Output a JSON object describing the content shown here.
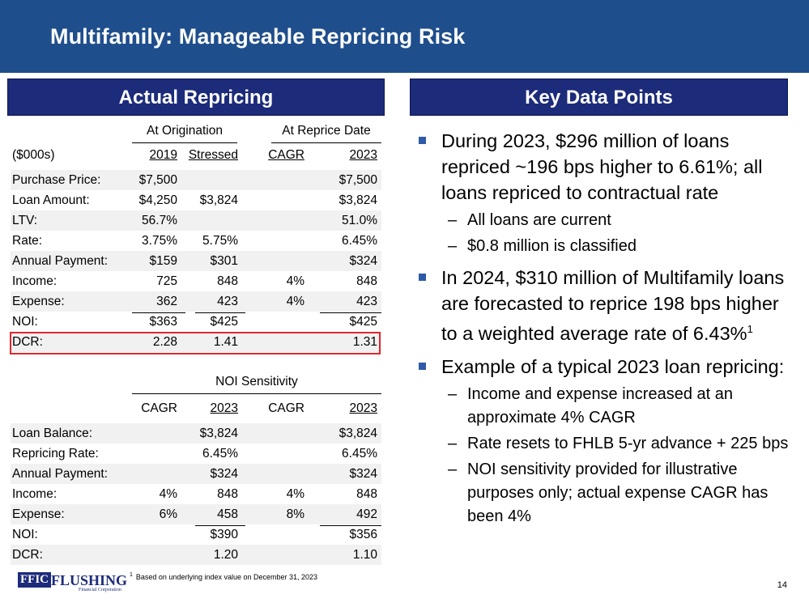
{
  "title": "Multifamily: Manageable Repricing Risk",
  "left_header": "Actual Repricing",
  "right_header": "Key Data Points",
  "actual": {
    "group1": "At Origination",
    "group2": "At Reprice Date",
    "units": "($000s)",
    "col1": "2019",
    "col2": "Stressed",
    "col3": "CAGR",
    "col4": "2023",
    "rows": [
      {
        "label": "Purchase Price:",
        "v1": "$7,500",
        "v2": "",
        "v3": "",
        "v4": "$7,500"
      },
      {
        "label": "Loan Amount:",
        "v1": "$4,250",
        "v2": "$3,824",
        "v3": "",
        "v4": "$3,824"
      },
      {
        "label": "LTV:",
        "v1": "56.7%",
        "v2": "",
        "v3": "",
        "v4": "51.0%"
      },
      {
        "label": "Rate:",
        "v1": "3.75%",
        "v2": "5.75%",
        "v3": "",
        "v4": "6.45%"
      },
      {
        "label": "Annual Payment:",
        "v1": "$159",
        "v2": "$301",
        "v3": "",
        "v4": "$324"
      },
      {
        "label": "Income:",
        "v1": "725",
        "v2": "848",
        "v3": "4%",
        "v4": "848"
      },
      {
        "label": "Expense:",
        "v1": "362",
        "v2": "423",
        "v3": "4%",
        "v4": "423"
      },
      {
        "label": "NOI:",
        "v1": "$363",
        "v2": "$425",
        "v3": "",
        "v4": "$425"
      },
      {
        "label": "DCR:",
        "v1": "2.28",
        "v2": "1.41",
        "v3": "",
        "v4": "1.31"
      }
    ]
  },
  "sensitivity": {
    "group": "NOI Sensitivity",
    "col1": "CAGR",
    "col2": "2023",
    "col3": "CAGR",
    "col4": "2023",
    "rows": [
      {
        "label": "Loan Balance:",
        "v1": "",
        "v2": "$3,824",
        "v3": "",
        "v4": "$3,824"
      },
      {
        "label": "Repricing Rate:",
        "v1": "",
        "v2": "6.45%",
        "v3": "",
        "v4": "6.45%"
      },
      {
        "label": "Annual Payment:",
        "v1": "",
        "v2": "$324",
        "v3": "",
        "v4": "$324"
      },
      {
        "label": "Income:",
        "v1": "4%",
        "v2": "848",
        "v3": "4%",
        "v4": "848"
      },
      {
        "label": "Expense:",
        "v1": "6%",
        "v2": "458",
        "v3": "8%",
        "v4": "492"
      },
      {
        "label": "NOI:",
        "v1": "",
        "v2": "$390",
        "v3": "",
        "v4": "$356"
      },
      {
        "label": "DCR:",
        "v1": "",
        "v2": "1.20",
        "v3": "",
        "v4": "1.10"
      }
    ]
  },
  "bullets": [
    {
      "text": "During 2023, $296 million of loans repriced ~196 bps higher to 6.61%; all loans repriced to contractual rate",
      "subs": [
        "All loans are current",
        "$0.8 million is classified"
      ]
    },
    {
      "text": "In 2024, $310 million of Multifamily loans are forecasted to reprice 198 bps higher to a weighted average rate of 6.43%",
      "sup": "1",
      "subs": []
    },
    {
      "text": "Example of a typical 2023 loan repricing:",
      "subs": [
        "Income and expense increased at an approximate 4% CAGR",
        "Rate resets to FHLB 5-yr advance + 225 bps",
        "NOI sensitivity provided for illustrative purposes only; actual expense CAGR has been 4%"
      ]
    }
  ],
  "footer": {
    "logo_box": "FFIC",
    "logo_word": "FLUSHING",
    "logo_sub": "Financial Corporation",
    "footnote_mark": "1",
    "footnote": "Based on underlying index value on December 31, 2023",
    "page": "14"
  },
  "colors": {
    "title_bar": "#1f4e8c",
    "section_header": "#1c2b7a",
    "highlight": "#e0262e",
    "bullet": "#2e5aa8"
  }
}
